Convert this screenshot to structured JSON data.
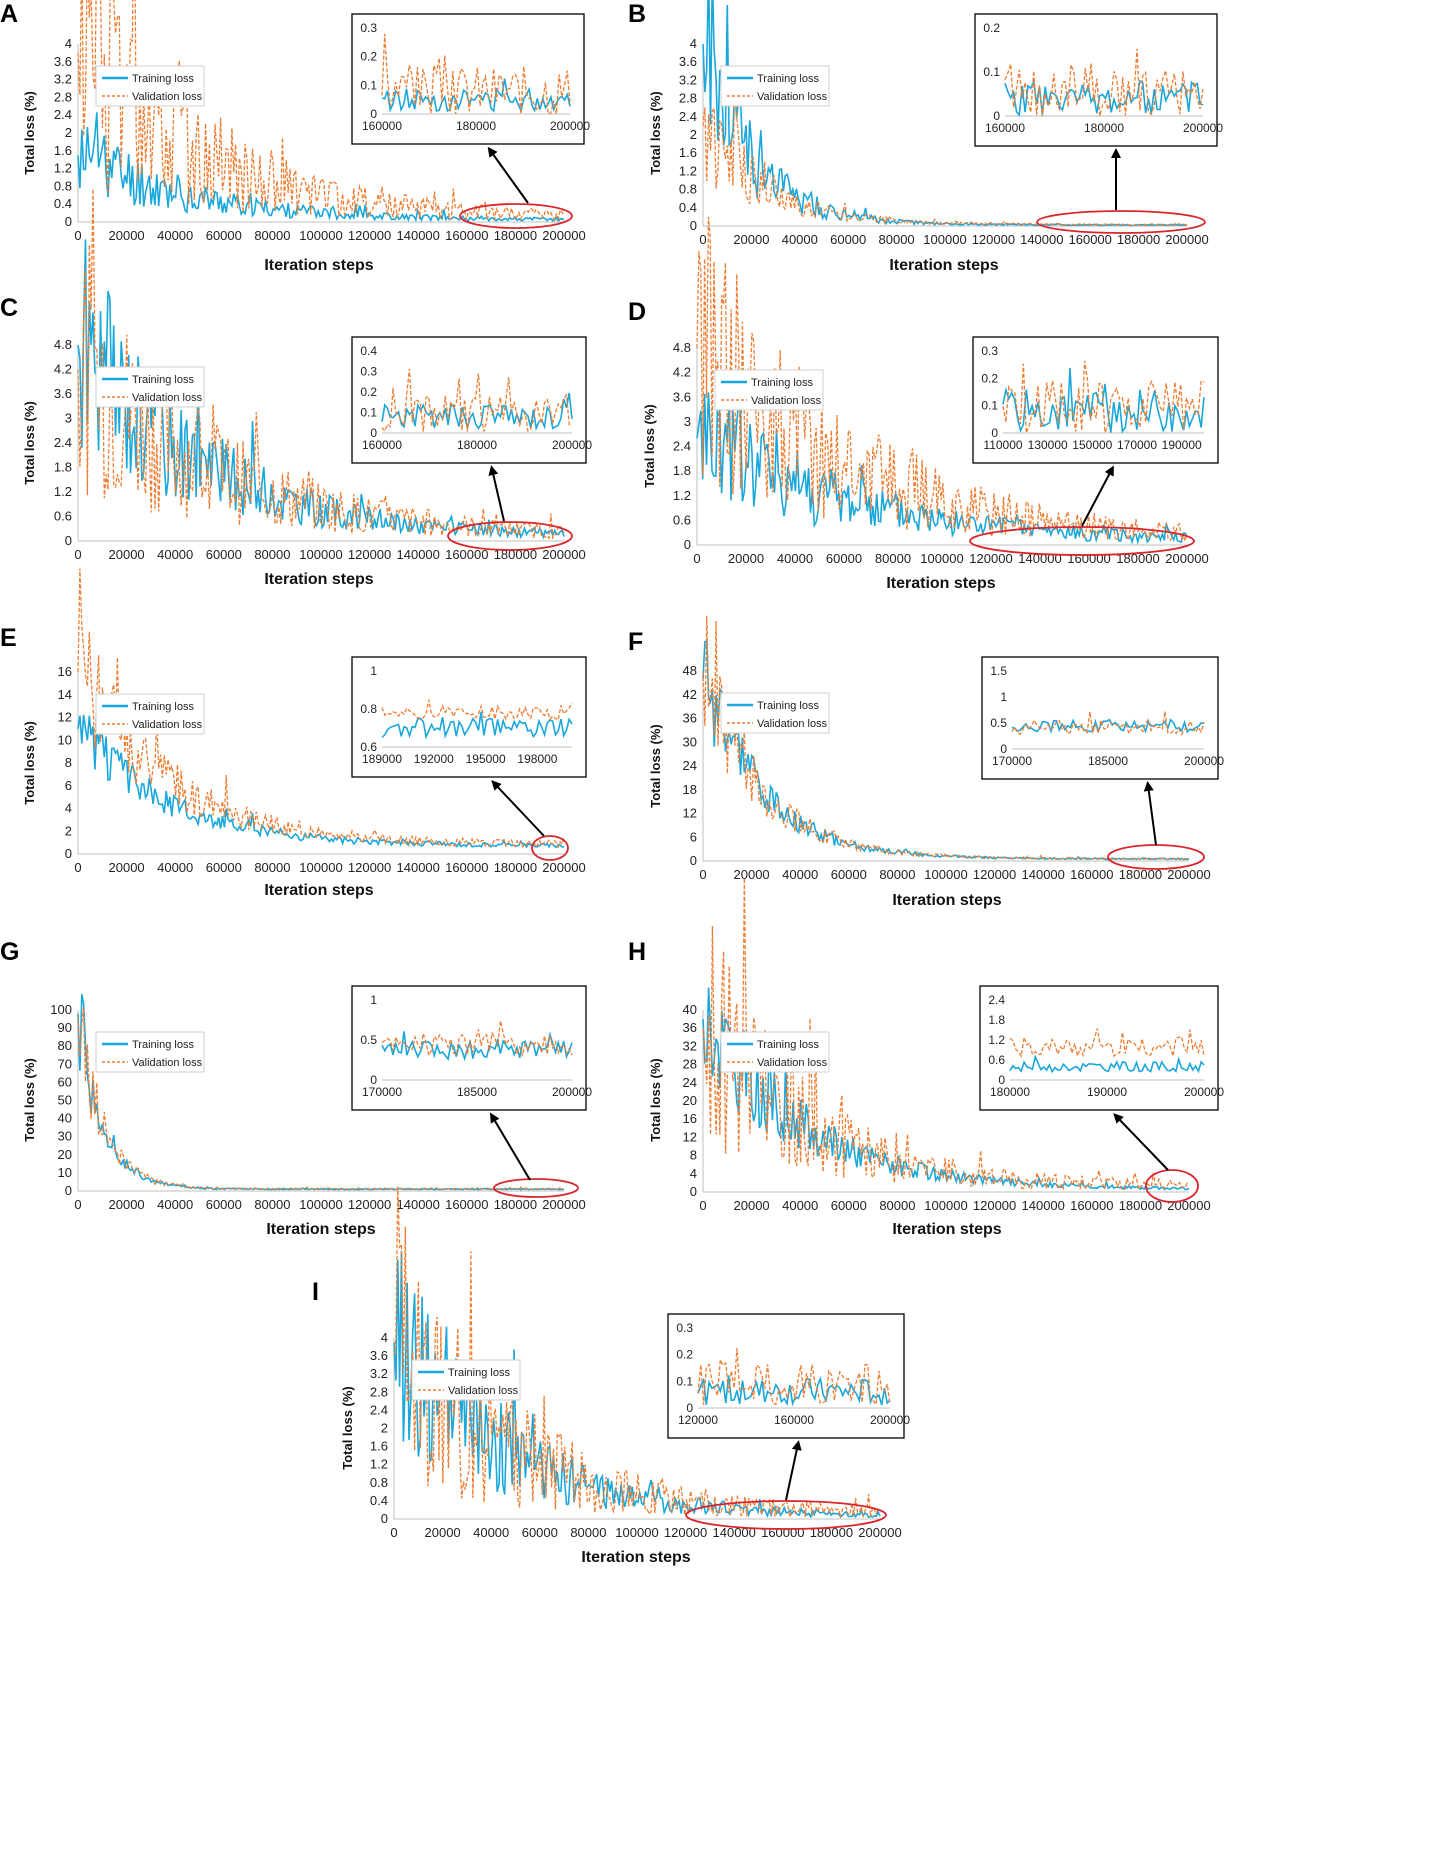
{
  "colors": {
    "training": "#1aa7dc",
    "validation": "#ee7d31",
    "highlight": "#d8262c",
    "axis": "#bfbfbf"
  },
  "chart_data": [
    {
      "panel": "A",
      "type": "line",
      "xlabel": "Iteration steps",
      "ylabel": "Total loss (%)",
      "xlim": [
        0,
        200000
      ],
      "x_ticks": [
        "0",
        "20000",
        "40000",
        "60000",
        "80000",
        "100000",
        "120000",
        "140000",
        "160000",
        "180000",
        "200000"
      ],
      "ylim": [
        0,
        4
      ],
      "y_ticks": [
        "0",
        "0.4",
        "0.8",
        "1.2",
        "1.6",
        "2",
        "2.4",
        "2.8",
        "3.2",
        "3.6",
        "4"
      ],
      "legend": [
        "Training loss",
        "Validation loss"
      ],
      "series": [
        {
          "name": "Training loss",
          "start": 1.5,
          "decay": 0.22,
          "floor": 0.04,
          "noise": 0.7,
          "seed": 11
        },
        {
          "name": "Validation loss",
          "start": 3.8,
          "decay": 0.25,
          "floor": 0.06,
          "noise": 0.9,
          "seed": 12
        }
      ],
      "highlight_range": [
        160000,
        202000
      ],
      "inset": {
        "xlim": [
          160000,
          200000
        ],
        "x_ticks": [
          "160000",
          "180000",
          "200000"
        ],
        "ylim": [
          0,
          0.3
        ],
        "y_ticks": [
          "0",
          "0.1",
          "0.2",
          "0.3"
        ],
        "series": [
          {
            "name": "Training loss",
            "level": 0.05,
            "noise": 0.04,
            "seed": 13
          },
          {
            "name": "Validation loss",
            "level": 0.08,
            "noise": 0.09,
            "seed": 14
          }
        ]
      }
    },
    {
      "panel": "B",
      "type": "line",
      "xlabel": "Iteration steps",
      "ylabel": "Total loss (%)",
      "xlim": [
        0,
        200000
      ],
      "x_ticks": [
        "0",
        "20000",
        "40000",
        "60000",
        "80000",
        "100000",
        "120000",
        "140000",
        "160000",
        "180000",
        "200000"
      ],
      "ylim": [
        0,
        4
      ],
      "y_ticks": [
        "0",
        "0.4",
        "0.8",
        "1.2",
        "1.6",
        "2",
        "2.4",
        "2.8",
        "3.2",
        "3.6",
        "4"
      ],
      "legend": [
        "Training loss",
        "Validation loss"
      ],
      "series": [
        {
          "name": "Training loss",
          "start": 4.0,
          "decay": 0.1,
          "floor": 0.02,
          "noise": 0.6,
          "seed": 21
        },
        {
          "name": "Validation loss",
          "start": 2.2,
          "decay": 0.12,
          "floor": 0.03,
          "noise": 0.6,
          "seed": 22
        }
      ],
      "highlight_range": [
        140000,
        202000
      ],
      "inset": {
        "xlim": [
          160000,
          200000
        ],
        "x_ticks": [
          "160000",
          "180000",
          "200000"
        ],
        "ylim": [
          0,
          0.2
        ],
        "y_ticks": [
          "0",
          "0.1",
          "0.2"
        ],
        "series": [
          {
            "name": "Training loss",
            "level": 0.04,
            "noise": 0.04,
            "seed": 23
          },
          {
            "name": "Validation loss",
            "level": 0.05,
            "noise": 0.06,
            "seed": 24
          }
        ]
      }
    },
    {
      "panel": "C",
      "type": "line",
      "xlabel": "Iteration steps",
      "ylabel": "Total loss (%)",
      "xlim": [
        0,
        200000
      ],
      "x_ticks": [
        "0",
        "20000",
        "40000",
        "60000",
        "80000",
        "100000",
        "120000",
        "140000",
        "160000",
        "180000",
        "200000"
      ],
      "ylim": [
        0,
        4.8
      ],
      "y_ticks": [
        "0",
        "0.6",
        "1.2",
        "1.8",
        "2.4",
        "3",
        "3.6",
        "4.2",
        "4.8"
      ],
      "legend": [
        "Training loss",
        "Validation loss"
      ],
      "series": [
        {
          "name": "Training loss",
          "start": 4.8,
          "decay": 0.25,
          "floor": 0.08,
          "noise": 0.6,
          "seed": 31
        },
        {
          "name": "Validation loss",
          "start": 4.2,
          "decay": 0.28,
          "floor": 0.1,
          "noise": 0.8,
          "seed": 32
        }
      ],
      "highlight_range": [
        150000,
        203000
      ],
      "inset": {
        "xlim": [
          160000,
          200000
        ],
        "x_ticks": [
          "160000",
          "180000",
          "200000"
        ],
        "ylim": [
          0,
          0.4
        ],
        "y_ticks": [
          "0",
          "0.1",
          "0.2",
          "0.3",
          "0.4"
        ],
        "series": [
          {
            "name": "Training loss",
            "level": 0.08,
            "noise": 0.06,
            "seed": 33
          },
          {
            "name": "Validation loss",
            "level": 0.1,
            "noise": 0.1,
            "seed": 34
          }
        ]
      }
    },
    {
      "panel": "D",
      "type": "line",
      "xlabel": "Iteration steps",
      "ylabel": "Total loss (%)",
      "xlim": [
        0,
        200000
      ],
      "x_ticks": [
        "0",
        "20000",
        "40000",
        "60000",
        "80000",
        "100000",
        "120000",
        "140000",
        "160000",
        "180000",
        "200000"
      ],
      "ylim": [
        0,
        4.8
      ],
      "y_ticks": [
        "0",
        "0.6",
        "1.2",
        "1.8",
        "2.4",
        "3",
        "3.6",
        "4.2",
        "4.8"
      ],
      "legend": [
        "Training loss",
        "Validation loss"
      ],
      "series": [
        {
          "name": "Training loss",
          "start": 2.6,
          "decay": 0.3,
          "floor": 0.08,
          "noise": 0.7,
          "seed": 41
        },
        {
          "name": "Validation loss",
          "start": 4.8,
          "decay": 0.3,
          "floor": 0.1,
          "noise": 0.8,
          "seed": 42
        }
      ],
      "highlight_range": [
        112000,
        203000
      ],
      "inset": {
        "xlim": [
          110000,
          200000
        ],
        "x_ticks": [
          "110000",
          "130000",
          "150000",
          "170000",
          "190000"
        ],
        "ylim": [
          0,
          0.3
        ],
        "y_ticks": [
          "0",
          "0.1",
          "0.2",
          "0.3"
        ],
        "series": [
          {
            "name": "Training loss",
            "level": 0.08,
            "noise": 0.08,
            "seed": 43
          },
          {
            "name": "Validation loss",
            "level": 0.1,
            "noise": 0.1,
            "seed": 44
          }
        ]
      }
    },
    {
      "panel": "E",
      "type": "line",
      "xlabel": "Iteration steps",
      "ylabel": "Total loss (%)",
      "xlim": [
        0,
        200000
      ],
      "x_ticks": [
        "0",
        "20000",
        "40000",
        "60000",
        "80000",
        "100000",
        "120000",
        "140000",
        "160000",
        "180000",
        "200000"
      ],
      "ylim": [
        0,
        16
      ],
      "y_ticks": [
        "0",
        "2",
        "4",
        "6",
        "8",
        "10",
        "12",
        "14",
        "16"
      ],
      "legend": [
        "Training loss",
        "Validation loss"
      ],
      "series": [
        {
          "name": "Training loss",
          "start": 11,
          "decay": 0.18,
          "floor": 0.7,
          "noise": 0.25,
          "seed": 51
        },
        {
          "name": "Validation loss",
          "start": 16,
          "decay": 0.18,
          "floor": 0.8,
          "noise": 0.35,
          "seed": 52
        }
      ],
      "highlight_range": [
        188000,
        202000
      ],
      "inset": {
        "xlim": [
          189000,
          200000
        ],
        "x_ticks": [
          "189000",
          "192000",
          "195000",
          "198000"
        ],
        "ylim": [
          0.6,
          1
        ],
        "y_ticks": [
          "0.6",
          "0.8",
          "1"
        ],
        "series": [
          {
            "name": "Training loss",
            "level": 0.7,
            "noise": 0.05,
            "seed": 53
          },
          {
            "name": "Validation loss",
            "level": 0.78,
            "noise": 0.04,
            "seed": 54
          }
        ]
      }
    },
    {
      "panel": "F",
      "type": "line",
      "xlabel": "Iteration steps",
      "ylabel": "Total loss (%)",
      "xlim": [
        0,
        200000
      ],
      "x_ticks": [
        "0",
        "20000",
        "40000",
        "60000",
        "80000",
        "100000",
        "120000",
        "140000",
        "160000",
        "180000",
        "200000"
      ],
      "ylim": [
        0,
        48
      ],
      "y_ticks": [
        "0",
        "6",
        "12",
        "18",
        "24",
        "30",
        "36",
        "42",
        "48"
      ],
      "legend": [
        "Training loss",
        "Validation loss"
      ],
      "series": [
        {
          "name": "Training loss",
          "start": 46,
          "decay": 0.12,
          "floor": 0.5,
          "noise": 0.3,
          "seed": 61
        },
        {
          "name": "Validation loss",
          "start": 48,
          "decay": 0.12,
          "floor": 0.5,
          "noise": 0.35,
          "seed": 62
        }
      ],
      "highlight_range": [
        166000,
        205000
      ],
      "inset": {
        "xlim": [
          170000,
          200000
        ],
        "x_ticks": [
          "170000",
          "185000",
          "200000"
        ],
        "ylim": [
          0,
          1.5
        ],
        "y_ticks": [
          "0",
          "0.5",
          "1",
          "1.5"
        ],
        "series": [
          {
            "name": "Training loss",
            "level": 0.45,
            "noise": 0.12,
            "seed": 63
          },
          {
            "name": "Validation loss",
            "level": 0.42,
            "noise": 0.14,
            "seed": 64
          }
        ]
      }
    },
    {
      "panel": "G",
      "type": "line",
      "xlabel": "Iteration steps",
      "ylabel": "Total loss (%)",
      "xlim": [
        0,
        200000
      ],
      "x_ticks": [
        "0",
        "20000",
        "40000",
        "60000",
        "80000",
        "100000",
        "120000",
        "140000",
        "160000",
        "180000",
        "200000"
      ],
      "ylim": [
        0,
        100
      ],
      "y_ticks": [
        "0",
        "10",
        "20",
        "30",
        "40",
        "50",
        "60",
        "70",
        "80",
        "90",
        "100"
      ],
      "legend": [
        "Training loss",
        "Validation loss"
      ],
      "series": [
        {
          "name": "Training loss",
          "start": 98,
          "decay": 0.05,
          "floor": 1,
          "noise": 0.3,
          "seed": 71
        },
        {
          "name": "Validation loss",
          "start": 96,
          "decay": 0.05,
          "floor": 1.2,
          "noise": 0.35,
          "seed": 72
        }
      ],
      "highlight_range": [
        165000,
        207000
      ],
      "inset": {
        "xlim": [
          170000,
          200000
        ],
        "x_ticks": [
          "170000",
          "185000",
          "200000"
        ],
        "ylim": [
          0,
          1
        ],
        "y_ticks": [
          "0",
          "0.5",
          "1"
        ],
        "series": [
          {
            "name": "Training loss",
            "level": 0.38,
            "noise": 0.12,
            "seed": 73
          },
          {
            "name": "Validation loss",
            "level": 0.45,
            "noise": 0.14,
            "seed": 74
          }
        ]
      }
    },
    {
      "panel": "H",
      "type": "line",
      "xlabel": "Iteration steps",
      "ylabel": "Total loss (%)",
      "xlim": [
        0,
        200000
      ],
      "x_ticks": [
        "0",
        "20000",
        "40000",
        "60000",
        "80000",
        "100000",
        "120000",
        "140000",
        "160000",
        "180000",
        "200000"
      ],
      "ylim": [
        0,
        40
      ],
      "y_ticks": [
        "0",
        "4",
        "8",
        "12",
        "16",
        "20",
        "24",
        "28",
        "32",
        "36",
        "40"
      ],
      "legend": [
        "Training loss",
        "Validation loss"
      ],
      "series": [
        {
          "name": "Training loss",
          "start": 38,
          "decay": 0.2,
          "floor": 0.5,
          "noise": 0.4,
          "seed": 81
        },
        {
          "name": "Validation loss",
          "start": 36,
          "decay": 0.2,
          "floor": 1.2,
          "noise": 0.8,
          "seed": 82
        }
      ],
      "highlight_range": [
        180000,
        203000
      ],
      "inset": {
        "xlim": [
          180000,
          200000
        ],
        "x_ticks": [
          "180000",
          "190000",
          "200000"
        ],
        "ylim": [
          0,
          2.4
        ],
        "y_ticks": [
          "0",
          "0.6",
          "1.2",
          "1.8",
          "2.4"
        ],
        "series": [
          {
            "name": "Training loss",
            "level": 0.4,
            "noise": 0.15,
            "seed": 83
          },
          {
            "name": "Validation loss",
            "level": 1.0,
            "noise": 0.3,
            "seed": 84
          }
        ]
      }
    },
    {
      "panel": "I",
      "type": "line",
      "xlabel": "Iteration steps",
      "ylabel": "Total loss (%)",
      "xlim": [
        0,
        200000
      ],
      "x_ticks": [
        "0",
        "20000",
        "40000",
        "60000",
        "80000",
        "100000",
        "120000",
        "140000",
        "160000",
        "180000",
        "200000"
      ],
      "ylim": [
        0,
        4
      ],
      "y_ticks": [
        "0",
        "0.4",
        "0.8",
        "1.2",
        "1.6",
        "2",
        "2.4",
        "2.8",
        "3.2",
        "3.6",
        "4"
      ],
      "legend": [
        "Training loss",
        "Validation loss"
      ],
      "series": [
        {
          "name": "Training loss",
          "start": 3.9,
          "decay": 0.22,
          "floor": 0.05,
          "noise": 0.7,
          "seed": 91
        },
        {
          "name": "Validation loss",
          "start": 3.6,
          "decay": 0.25,
          "floor": 0.07,
          "noise": 0.9,
          "seed": 92
        }
      ],
      "highlight_range": [
        122000,
        203000
      ],
      "inset": {
        "xlim": [
          120000,
          200000
        ],
        "x_ticks": [
          "120000",
          "160000",
          "200000"
        ],
        "ylim": [
          0,
          0.3
        ],
        "y_ticks": [
          "0",
          "0.1",
          "0.2",
          "0.3"
        ],
        "series": [
          {
            "name": "Training loss",
            "level": 0.06,
            "noise": 0.05,
            "seed": 93
          },
          {
            "name": "Validation loss",
            "level": 0.09,
            "noise": 0.08,
            "seed": 94
          }
        ]
      }
    }
  ]
}
